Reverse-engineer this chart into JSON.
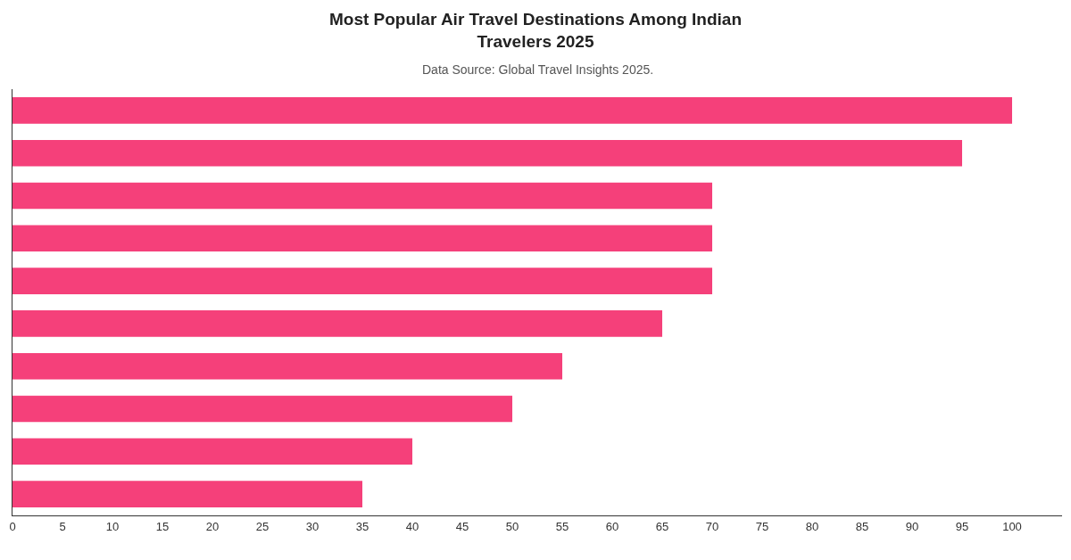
{
  "chart_data": {
    "type": "bar",
    "orientation": "horizontal",
    "title": "Most Popular Air Travel Destinations Among Indian\nTravelers 2025",
    "subtitle": "Data Source: Global Travel Insights 2025.",
    "categories": [
      null,
      null,
      null,
      null,
      null,
      null,
      null,
      null,
      null,
      null
    ],
    "values": [
      100,
      95,
      70,
      70,
      70,
      65,
      55,
      50,
      40,
      35
    ],
    "color": "#f5407a",
    "xlim": [
      0,
      105
    ],
    "xticks": [
      0,
      5,
      10,
      15,
      20,
      25,
      30,
      35,
      40,
      45,
      50,
      55,
      60,
      65,
      70,
      75,
      80,
      85,
      90,
      95,
      100
    ],
    "grid": false,
    "tick_labels": "x"
  }
}
